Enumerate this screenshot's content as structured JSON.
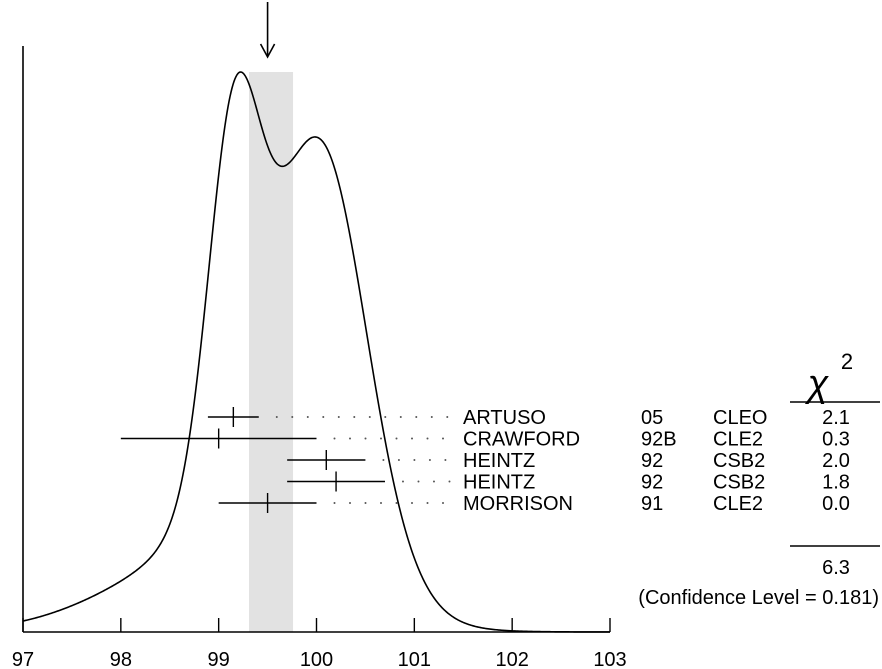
{
  "chart_data": {
    "type": "ideogram",
    "xlabel": "",
    "ylabel": "",
    "xlim": [
      97,
      103
    ],
    "x_ticks": [
      "97",
      "98",
      "99",
      "100",
      "101",
      "102",
      "103"
    ],
    "x_tick_values": [
      97,
      98,
      99,
      100,
      101,
      102,
      103
    ],
    "average": {
      "value": 99.5,
      "error_band": [
        99.31,
        99.76
      ]
    },
    "measurements": [
      {
        "author": "ARTUSO",
        "year": "05",
        "experiment": "CLEO",
        "chi2": "2.1",
        "value": 99.15,
        "error": 0.26
      },
      {
        "author": "CRAWFORD",
        "year": "92B",
        "experiment": "CLE2",
        "chi2": "0.3",
        "value": 99.0,
        "error": 1.0
      },
      {
        "author": "HEINTZ",
        "year": "92",
        "experiment": "CSB2",
        "chi2": "2.0",
        "value": 100.1,
        "error": 0.4
      },
      {
        "author": "HEINTZ",
        "year": "92",
        "experiment": "CSB2",
        "chi2": "1.8",
        "value": 100.2,
        "error": 0.5
      },
      {
        "author": "MORRISON",
        "year": "91",
        "experiment": "CLE2",
        "chi2": "0.0",
        "value": 99.5,
        "error": 0.5
      }
    ],
    "chi2_header": {
      "symbol": "χ",
      "exponent": "2"
    },
    "chi2_total": "6.3",
    "confidence_text": "(Confidence Level = 0.181)",
    "colors": {
      "line": "#000000",
      "band": "#e2e2e2",
      "dots": "#555555"
    }
  }
}
